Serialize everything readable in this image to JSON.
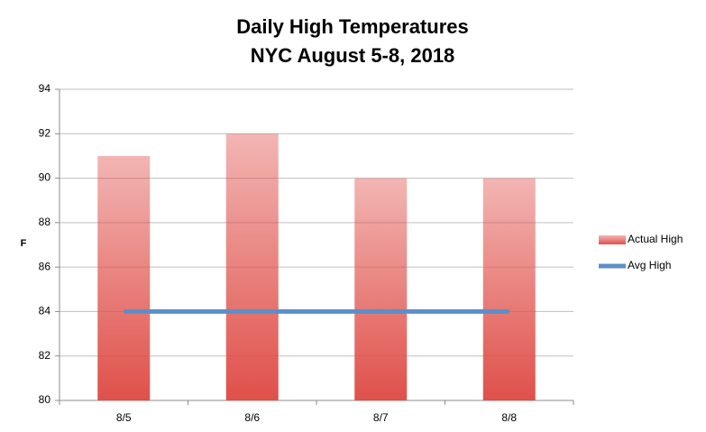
{
  "chart_data": {
    "type": "bar",
    "title": "Daily High Temperatures",
    "subtitle": "NYC August 5-8, 2018",
    "y_label": "F",
    "categories": [
      "8/5",
      "8/6",
      "8/7",
      "8/8"
    ],
    "series": [
      {
        "name": "Actual High",
        "type": "bar",
        "color": "#e0504a",
        "values": [
          91,
          92,
          90,
          90
        ]
      },
      {
        "name": "Avg High",
        "type": "line",
        "color": "#5b8fc9",
        "values": [
          84,
          84,
          84,
          84
        ]
      }
    ],
    "ylim": [
      80,
      94
    ],
    "yticks": [
      80,
      82,
      84,
      86,
      88,
      90,
      92,
      94
    ],
    "grid": true,
    "legend": "right"
  }
}
